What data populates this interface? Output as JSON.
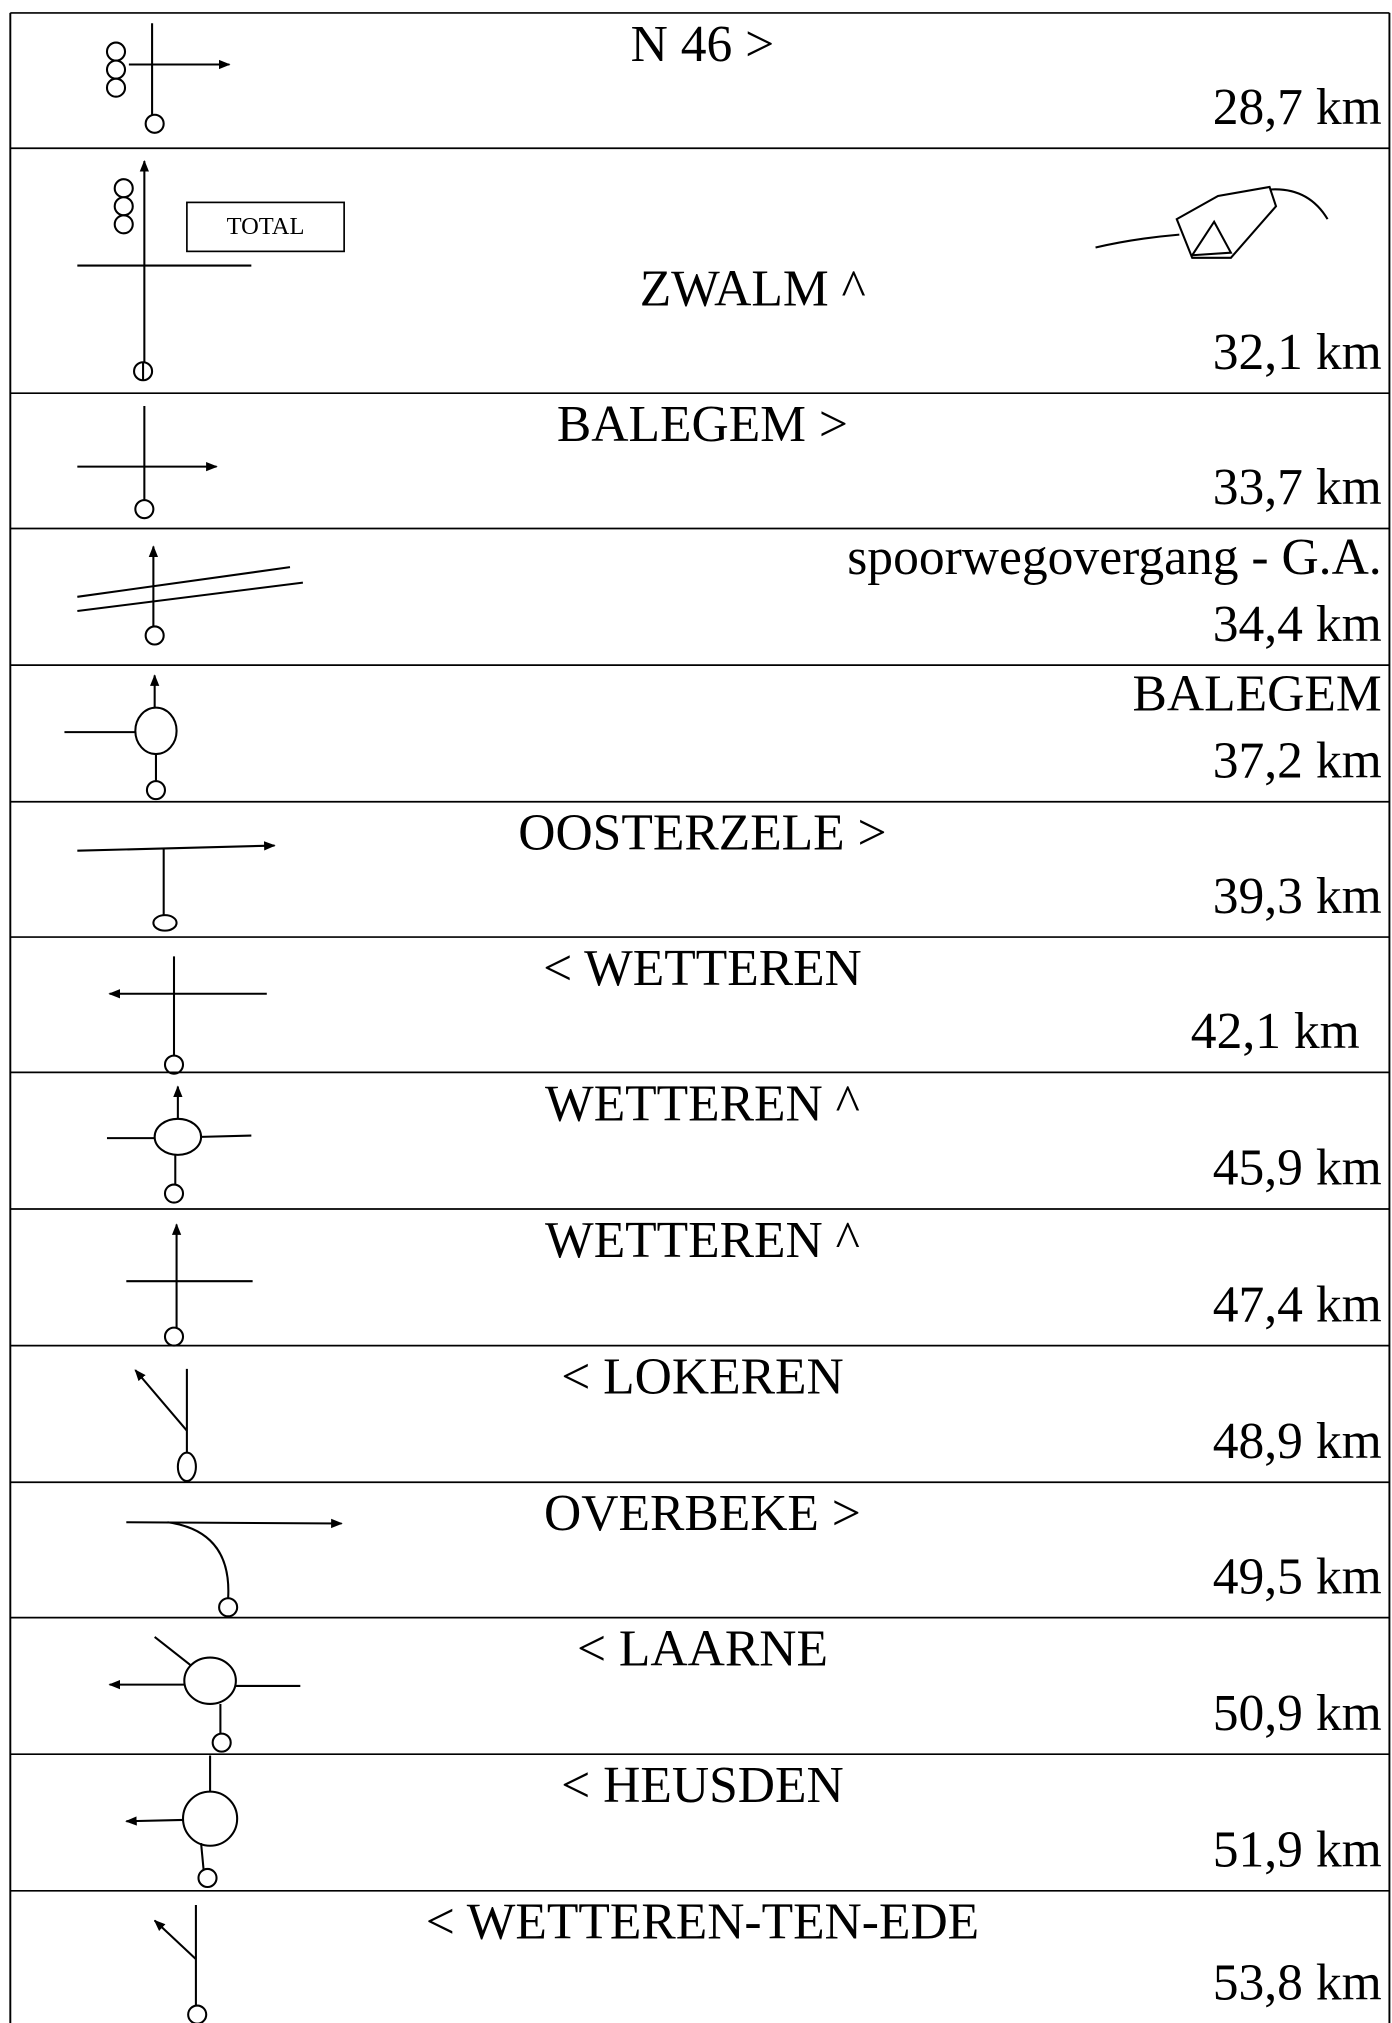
{
  "rows": [
    {
      "label": "N 46 >",
      "distance": "28,7 km"
    },
    {
      "label": "ZWALM ^",
      "distance": "32,1 km",
      "sign": "TOTAL"
    },
    {
      "label": "BALEGEM >",
      "distance": "33,7 km"
    },
    {
      "label": "spoorwegovergang - G.A.",
      "distance": "34,4 km"
    },
    {
      "label": "BALEGEM",
      "distance": "37,2 km"
    },
    {
      "label": "OOSTERZELE >",
      "distance": "39,3 km"
    },
    {
      "label": "< WETTEREN",
      "distance": "42,1 km"
    },
    {
      "label": "WETTEREN ^",
      "distance": "45,9 km"
    },
    {
      "label": "WETTEREN ^",
      "distance": "47,4 km"
    },
    {
      "label": "< LOKEREN",
      "distance": "48,9 km"
    },
    {
      "label": "OVERBEKE >",
      "distance": "49,5 km"
    },
    {
      "label": "< LAARNE",
      "distance": "50,9 km"
    },
    {
      "label": "< HEUSDEN",
      "distance": "51,9 km"
    },
    {
      "label": "< WETTEREN-TEN-EDE",
      "distance": "53,8 km"
    }
  ]
}
